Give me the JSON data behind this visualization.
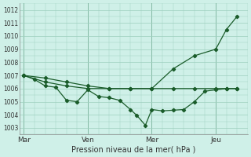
{
  "xlabel": "Pression niveau de la mer( hPa )",
  "background_color": "#cff0e8",
  "grid_color": "#9ecfbe",
  "line_color": "#1a5c2a",
  "vline_color": "#4a8a6a",
  "ylim": [
    1002.5,
    1012.5
  ],
  "yticks": [
    1003,
    1004,
    1005,
    1006,
    1007,
    1008,
    1009,
    1010,
    1011,
    1012
  ],
  "day_labels": [
    "Mar",
    "Ven",
    "Mer",
    "Jeu"
  ],
  "day_positions": [
    0,
    3,
    6,
    9
  ],
  "xlim": [
    -0.2,
    10.5
  ],
  "series_smooth_x": [
    0,
    1,
    2,
    3,
    4,
    5,
    6,
    7,
    8,
    9,
    9.5,
    10
  ],
  "series_smooth_y": [
    1007.0,
    1006.8,
    1006.5,
    1006.2,
    1006.0,
    1006.0,
    1006.0,
    1007.5,
    1008.5,
    1009.0,
    1010.5,
    1011.5
  ],
  "series_flat_x": [
    0,
    1,
    2,
    3,
    4,
    5,
    6,
    7,
    8,
    9,
    9.5,
    10
  ],
  "series_flat_y": [
    1007.0,
    1006.5,
    1006.2,
    1006.0,
    1006.0,
    1006.0,
    1006.0,
    1006.0,
    1006.0,
    1006.0,
    1006.0,
    1006.0
  ],
  "series_jagged_x": [
    0,
    0.5,
    1,
    1.5,
    2,
    2.5,
    3,
    3.5,
    4,
    4.5,
    5,
    5.3,
    5.7,
    6,
    6.5,
    7,
    7.5,
    8,
    8.5,
    9,
    9.5,
    10
  ],
  "series_jagged_y": [
    1007.0,
    1006.7,
    1006.2,
    1006.1,
    1005.1,
    1005.0,
    1005.9,
    1005.4,
    1005.3,
    1005.1,
    1004.4,
    1003.95,
    1003.2,
    1004.4,
    1004.3,
    1004.35,
    1004.4,
    1005.0,
    1005.8,
    1005.9,
    1006.0,
    1006.0
  ],
  "figsize": [
    3.2,
    2.0
  ],
  "dpi": 100
}
